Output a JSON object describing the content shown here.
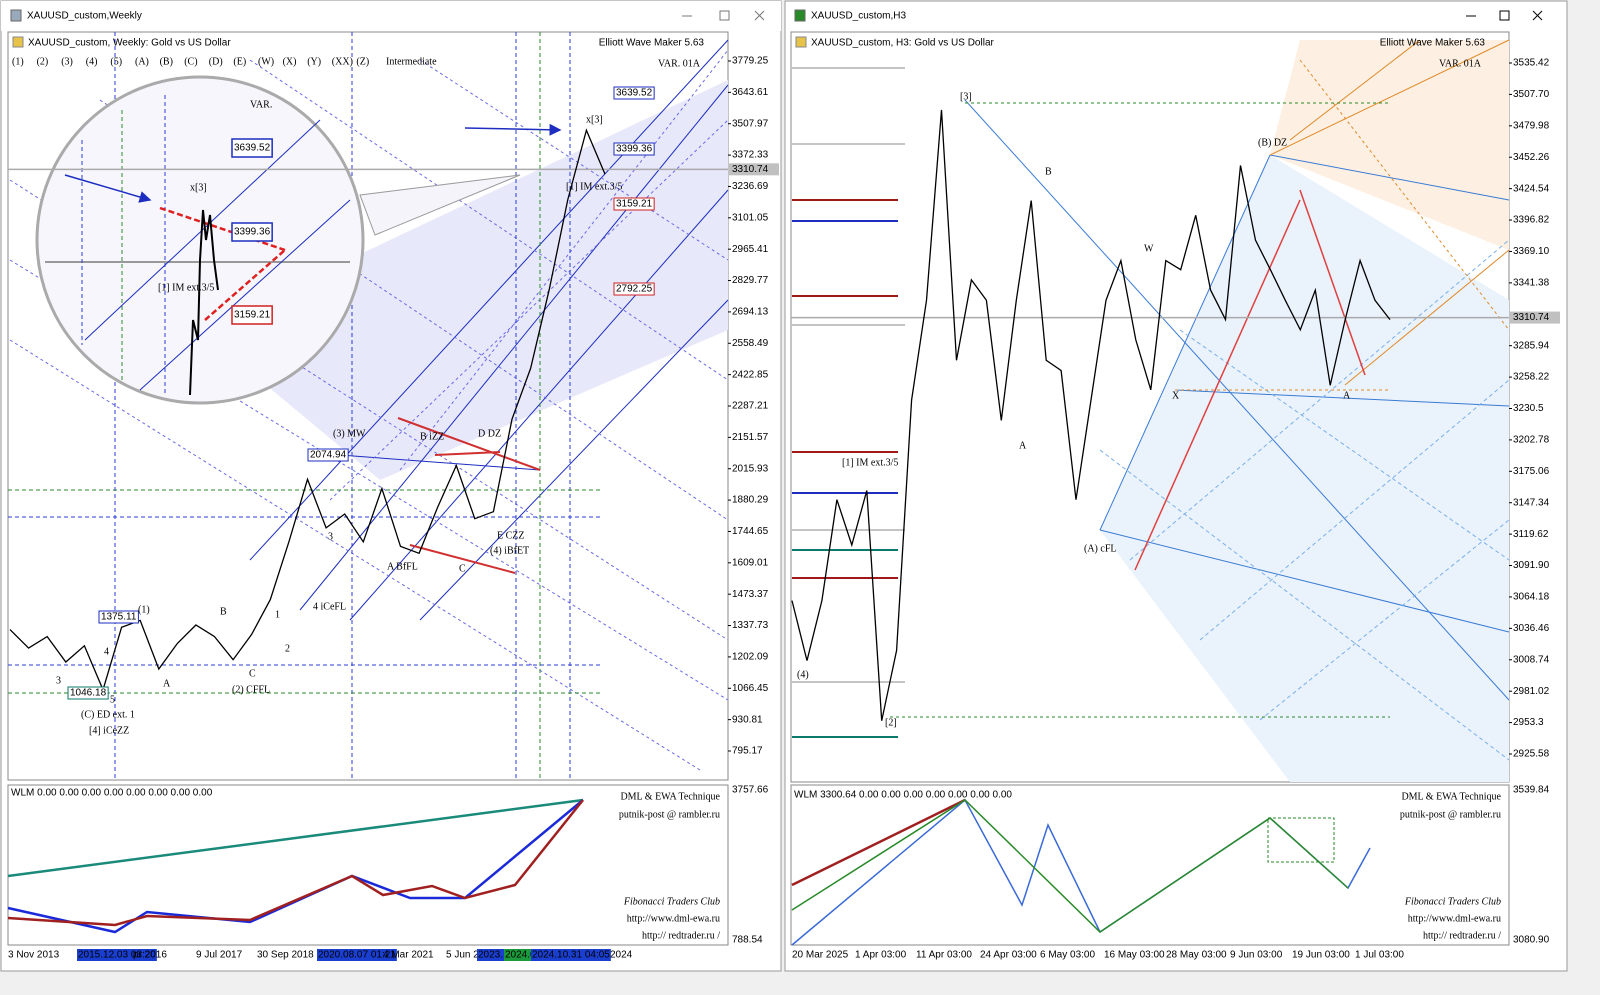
{
  "windows": [
    {
      "title": "XAUUSD_custom,Weekly",
      "header": "XAUUSD_custom, Weekly:  Gold vs US Dollar",
      "ewm": "Elliott Wave Maker 5.63",
      "wave_buttons": [
        "(1)",
        "(2)",
        "(3)",
        "(4)",
        "(5)",
        "(A)",
        "(B)",
        "(C)",
        "(D)",
        "(E)",
        "(W)",
        "(X)",
        "(Y)",
        "(XX)",
        "(Z)"
      ],
      "degree": "Intermediate",
      "var": "VAR. 01A",
      "magnifier_var": "VAR.",
      "ylim": [
        795.17,
        3779.25
      ],
      "yticks": [
        3779.25,
        3643.61,
        3507.97,
        3372.33,
        3236.69,
        3101.05,
        2965.41,
        2829.77,
        2694.13,
        2558.49,
        2422.85,
        2287.21,
        2151.57,
        2015.93,
        1880.29,
        1744.65,
        1609.01,
        1473.37,
        1337.73,
        1202.09,
        1066.45,
        930.81,
        795.17
      ],
      "current_price": 3310.74,
      "price": [
        1320,
        1240,
        1290,
        1180,
        1250,
        1060,
        1330,
        1360,
        1150,
        1260,
        1340,
        1290,
        1190,
        1300,
        1450,
        1700,
        1970,
        1760,
        1820,
        1700,
        1930,
        1680,
        1650,
        1850,
        2030,
        1800,
        1830,
        2230,
        2450,
        2790,
        3180,
        3480,
        3290
      ],
      "dates": [
        "3 Nov 2013",
        "2015.12.03 03:20",
        "pr 2016",
        "9 Jul 2017",
        "30 Sep 2018",
        "2020.08.07 01:21",
        "4 Mar 2021",
        "5 Jun 2",
        "2023.",
        "2024.0",
        "2024.10.31 04:05",
        "2024"
      ],
      "levels": [
        "3639.52",
        "3399.36",
        "3159.21",
        "2792.25",
        "2074.94",
        "1375.11",
        "1046.18"
      ],
      "wave_labels": [
        "(1)",
        "(2) CFFL",
        "(3) MW",
        "(4) iBfET",
        "(C) ED ext. 1",
        "[4] iCeZZ",
        "A",
        "B",
        "C",
        "3",
        "4",
        "5",
        "1",
        "2",
        "3",
        "4 iCeFL",
        "A BfFL",
        "B iZZ",
        "C",
        "D DZ",
        "E CZZ",
        "[1] IM ext.3/5",
        "x[3]"
      ],
      "indicator": {
        "label": "WLM 0.00 0.00 0.00 0.00 0.00 0.00 0.00 0.00",
        "top": "3757.66",
        "bottom": "788.54"
      },
      "watermark": [
        "DML & EWA Technique",
        "putnik-post @ rambler.ru",
        "Fibonacci   Traders   Club",
        "http://www.dml-ewa.ru",
        "http://  redtrader.ru  /"
      ]
    },
    {
      "title": "XAUUSD_custom,H3",
      "header": "XAUUSD_custom, H3:  Gold vs US Dollar",
      "ewm": "Elliott Wave Maker 5.63",
      "var": "VAR. 01A",
      "ylim": [
        2925.58,
        3535.42
      ],
      "yticks": [
        3535.42,
        {
          "value": 3507.7,
          "label": "3507.70"
        },
        3479.98,
        3452.26,
        3424.54,
        3396.82,
        {
          "value": 3369.1,
          "label": "3369.10"
        },
        3341.38,
        3285.94,
        3258.22,
        3230.5,
        3202.78,
        3175.06,
        3147.34,
        3119.62,
        {
          "value": 3091.9,
          "label": "3091.90"
        },
        3064.18,
        3036.46,
        3008.74,
        2981.02,
        2953.3,
        2925.58
      ],
      "current_price": 3310.74,
      "price": [
        3061,
        3008,
        3061,
        3150,
        3110,
        3158,
        2955,
        3017,
        3238,
        3326,
        3494,
        3273,
        3344,
        3326,
        3220,
        3326,
        3414,
        3273,
        3264,
        3150,
        3238,
        3326,
        3361,
        3291,
        3247,
        3361,
        3353,
        3401,
        3335,
        3309,
        3445,
        3379,
        3353,
        3326,
        3300,
        3335,
        3251,
        3309,
        3361,
        3326,
        3309
      ],
      "dates": [
        "20 Mar 2025",
        "1 Apr 03:00",
        "11 Apr 03:00",
        "24 Apr 03:00",
        "6 May 03:00",
        "16 May 03:00",
        "28 May 03:00",
        "9 Jun 03:00",
        "19 Jun 03:00",
        "1 Jul 03:00"
      ],
      "wave_labels": [
        "[3]",
        "B",
        "W",
        "A",
        "X",
        "(B) DZ",
        "A",
        "(A) cFL",
        "[1] IM ext.3/5",
        "(4)",
        "[2]"
      ],
      "indicator": {
        "label": "WLM 3300.64 0.00 0.00 0.00 0.00 0.00 0.00 0.00",
        "top": "3539.84",
        "bottom": "3080.90"
      },
      "watermark": [
        "DML & EWA Technique",
        "putnik-post @ rambler.ru",
        "Fibonacci   Traders   Club",
        "http://www.dml-ewa.ru",
        "http://  redtrader.ru  /"
      ]
    }
  ]
}
